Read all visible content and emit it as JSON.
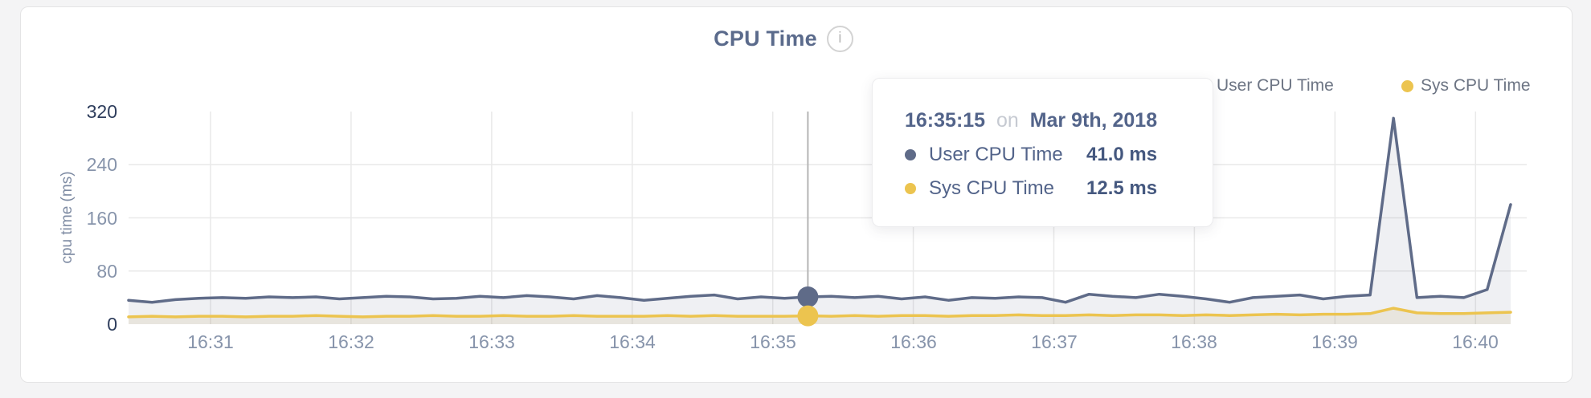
{
  "header": {
    "title": "CPU Time",
    "info_icon": "i"
  },
  "legend": {
    "items": [
      {
        "label": "User CPU Time",
        "color": "#5f6b88"
      },
      {
        "label": "Sys CPU Time",
        "color": "#ecc44f"
      }
    ]
  },
  "tooltip": {
    "time": "16:35:15",
    "connector": "on",
    "date": "Mar 9th, 2018",
    "rows": [
      {
        "label": "User CPU Time",
        "value": "41.0 ms",
        "color": "#5f6b88"
      },
      {
        "label": "Sys CPU Time",
        "value": "12.5 ms",
        "color": "#ecc44f"
      }
    ]
  },
  "colors": {
    "user_line": "#5f6b88",
    "sys_line": "#ecc44f",
    "user_fill": "rgba(98,110,138,0.10)",
    "sys_fill": "rgba(196,172,112,0.16)",
    "gridline": "#e9e9e9",
    "hover_line": "#b5b5b5",
    "tick_dark": "#2e3d5c",
    "tick_light": "#8794ab"
  },
  "chart_data": {
    "type": "area",
    "title": "CPU Time",
    "xlabel": "",
    "ylabel": "cpu time (ms)",
    "ylim": [
      0,
      320
    ],
    "y_ticks": [
      0,
      80,
      160,
      240,
      320
    ],
    "x_ticks": [
      "16:31",
      "16:32",
      "16:33",
      "16:34",
      "16:35",
      "16:36",
      "16:37",
      "16:38",
      "16:39",
      "16:40"
    ],
    "grid": true,
    "legend_position": "top-right",
    "x_times": [
      "16:30:25",
      "16:30:35",
      "16:30:45",
      "16:30:55",
      "16:31:05",
      "16:31:15",
      "16:31:25",
      "16:31:35",
      "16:31:45",
      "16:31:55",
      "16:32:05",
      "16:32:15",
      "16:32:25",
      "16:32:35",
      "16:32:45",
      "16:32:55",
      "16:33:05",
      "16:33:15",
      "16:33:25",
      "16:33:35",
      "16:33:45",
      "16:33:55",
      "16:34:05",
      "16:34:15",
      "16:34:25",
      "16:34:35",
      "16:34:45",
      "16:34:55",
      "16:35:05",
      "16:35:15",
      "16:35:25",
      "16:35:35",
      "16:35:45",
      "16:35:55",
      "16:36:05",
      "16:36:15",
      "16:36:25",
      "16:36:35",
      "16:36:45",
      "16:36:55",
      "16:37:05",
      "16:37:15",
      "16:37:25",
      "16:37:35",
      "16:37:45",
      "16:37:55",
      "16:38:05",
      "16:38:15",
      "16:38:25",
      "16:38:35",
      "16:38:45",
      "16:38:55",
      "16:39:05",
      "16:39:15",
      "16:39:25",
      "16:39:35",
      "16:39:45",
      "16:39:55",
      "16:40:05",
      "16:40:15"
    ],
    "series": [
      {
        "name": "User CPU Time",
        "color": "#5f6b88",
        "fill": "rgba(98,110,138,0.10)",
        "values": [
          36,
          33,
          37,
          39,
          40,
          39,
          41,
          40,
          41,
          38,
          40,
          42,
          41,
          38,
          39,
          42,
          40,
          43,
          41,
          38,
          43,
          40,
          36,
          39,
          42,
          44,
          38,
          41,
          39,
          41,
          42,
          40,
          42,
          38,
          41,
          36,
          40,
          39,
          41,
          40,
          33,
          45,
          42,
          40,
          45,
          42,
          38,
          33,
          40,
          42,
          44,
          38,
          42,
          44,
          310,
          40,
          42,
          40,
          52,
          180
        ]
      },
      {
        "name": "Sys CPU Time",
        "color": "#ecc44f",
        "fill": "rgba(196,172,112,0.16)",
        "values": [
          11,
          12,
          11,
          12,
          12,
          11,
          12,
          12,
          13,
          12,
          11,
          12,
          12,
          13,
          12,
          12,
          13,
          12,
          12,
          13,
          12,
          12,
          12,
          13,
          12,
          13,
          12,
          12,
          12,
          12.5,
          12,
          13,
          12,
          13,
          13,
          12,
          13,
          13,
          14,
          13,
          13,
          14,
          13,
          14,
          14,
          13,
          14,
          13,
          14,
          15,
          14,
          15,
          15,
          16,
          24,
          17,
          16,
          16,
          17,
          18
        ]
      }
    ],
    "hover": {
      "x_time": "16:35:15",
      "user_value": 41.0,
      "sys_value": 12.5
    }
  }
}
